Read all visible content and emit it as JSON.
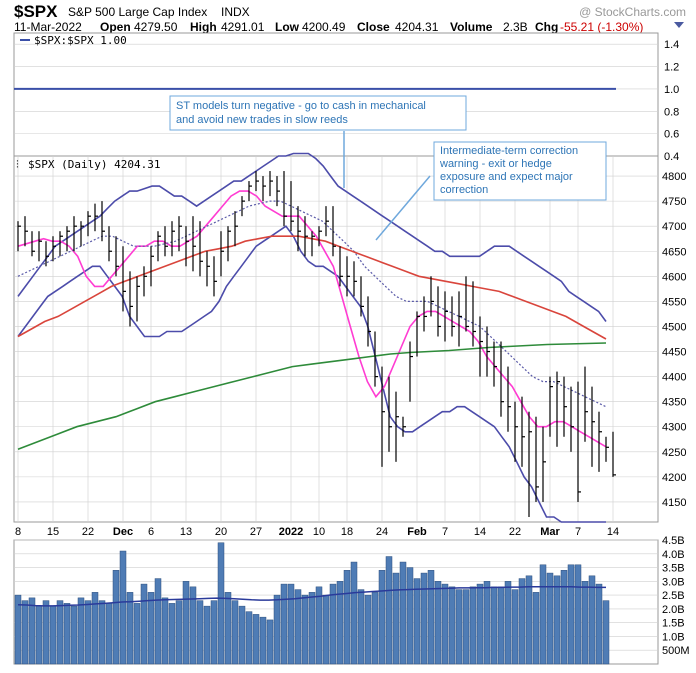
{
  "header": {
    "symbol": "$SPX",
    "name": "S&P 500 Large Cap Index",
    "exchange": "INDX",
    "watermark": "@ StockCharts.com",
    "date": "11-Mar-2022",
    "open_label": "Open",
    "open": "4279.50",
    "high_label": "High",
    "high": "4291.01",
    "low_label": "Low",
    "low": "4200.49",
    "close_label": "Close",
    "close": "4204.31",
    "volume_label": "Volume",
    "volume": "2.3B",
    "chg_label": "Chg",
    "chg": "-55.21 (-1.30%)"
  },
  "colors": {
    "ratio_line": "#3a4fa8",
    "bollinger": "#4c4caa",
    "ema_fast": "#ff3cd2",
    "ma_dotted": "#5a5aa8",
    "ma_50": "#d9453c",
    "ma_200": "#2e8b3a",
    "volume_bar": "#4f7cb5",
    "volume_avg": "#2a3a9a",
    "annotation_border": "#6fa8dc",
    "annotation_text": "#2e75b6",
    "grid": "#cfcfcf"
  },
  "chart_data": [
    {
      "type": "line",
      "panel": "ratio",
      "legend": "$SPX:$SPX 1.00",
      "ylim": [
        0.4,
        1.5
      ],
      "yticks": [
        0.4,
        0.6,
        0.8,
        1.0,
        1.2,
        1.4
      ],
      "ytick_labels": [
        "0.4",
        "0.6",
        "0.8",
        "1.0",
        "1.2",
        "1.4"
      ],
      "value": 1.0
    },
    {
      "type": "line",
      "panel": "price",
      "legend": "$SPX (Daily) 4204.31",
      "ylim": [
        4110,
        4840
      ],
      "yticks": [
        4150,
        4200,
        4250,
        4300,
        4350,
        4400,
        4450,
        4500,
        4550,
        4600,
        4650,
        4700,
        4750,
        4800
      ],
      "x_tick_labels": [
        "8",
        "15",
        "22",
        "Dec",
        "6",
        "13",
        "20",
        "27",
        "2022",
        "10",
        "18",
        "24",
        "Feb",
        "7",
        "14",
        "22",
        "Mar",
        "7",
        "14"
      ],
      "x_tick_index": [
        0,
        5,
        10,
        15,
        19,
        24,
        29,
        34,
        39,
        43,
        47,
        52,
        57,
        61,
        66,
        71,
        76,
        80,
        85
      ],
      "ohlc": {
        "high": [
          4710,
          4720,
          4690,
          4690,
          4670,
          4680,
          4690,
          4700,
          4720,
          4710,
          4730,
          4745,
          4750,
          4700,
          4680,
          4660,
          4610,
          4600,
          4620,
          4660,
          4690,
          4700,
          4710,
          4720,
          4700,
          4720,
          4710,
          4650,
          4640,
          4690,
          4700,
          4730,
          4760,
          4790,
          4810,
          4800,
          4810,
          4800,
          4810,
          4790,
          4740,
          4720,
          4690,
          4700,
          4740,
          4740,
          4660,
          4640,
          4630,
          4600,
          4560,
          4490,
          4420,
          4400,
          4370,
          4320,
          4470,
          4530,
          4560,
          4600,
          4580,
          4570,
          4560,
          4570,
          4600,
          4590,
          4520,
          4500,
          4470,
          4470,
          4420,
          4350,
          4360,
          4330,
          4320,
          4300,
          4400,
          4410,
          4400,
          4380,
          4390,
          4420,
          4380,
          4330,
          4280,
          4290
        ],
        "low": [
          4650,
          4660,
          4640,
          4630,
          4620,
          4630,
          4640,
          4650,
          4650,
          4660,
          4680,
          4690,
          4670,
          4630,
          4600,
          4530,
          4500,
          4510,
          4560,
          4580,
          4630,
          4640,
          4640,
          4650,
          4620,
          4610,
          4600,
          4580,
          4560,
          4600,
          4630,
          4660,
          4720,
          4750,
          4770,
          4750,
          4760,
          4740,
          4700,
          4690,
          4650,
          4640,
          4640,
          4660,
          4680,
          4640,
          4580,
          4560,
          4560,
          4520,
          4460,
          4380,
          4220,
          4250,
          4230,
          4280,
          4350,
          4440,
          4490,
          4520,
          4480,
          4470,
          4480,
          4460,
          4490,
          4460,
          4400,
          4400,
          4380,
          4320,
          4290,
          4230,
          4220,
          4120,
          4150,
          4150,
          4280,
          4260,
          4280,
          4250,
          4150,
          4270,
          4220,
          4210,
          4230,
          4200
        ],
        "close": [
          4700,
          4690,
          4650,
          4670,
          4640,
          4660,
          4680,
          4690,
          4700,
          4700,
          4720,
          4720,
          4690,
          4650,
          4620,
          4570,
          4540,
          4580,
          4600,
          4640,
          4680,
          4660,
          4690,
          4700,
          4670,
          4660,
          4630,
          4620,
          4590,
          4650,
          4690,
          4700,
          4750,
          4780,
          4790,
          4780,
          4790,
          4770,
          4720,
          4710,
          4690,
          4680,
          4680,
          4690,
          4710,
          4660,
          4600,
          4600,
          4590,
          4540,
          4490,
          4400,
          4330,
          4300,
          4320,
          4300,
          4440,
          4520,
          4520,
          4550,
          4500,
          4530,
          4500,
          4520,
          4500,
          4490,
          4470,
          4450,
          4420,
          4350,
          4340,
          4300,
          4280,
          4290,
          4180,
          4230,
          4380,
          4390,
          4340,
          4300,
          4170,
          4330,
          4310,
          4290,
          4259,
          4204
        ]
      },
      "series": [
        {
          "name": "upper_band",
          "values": [
            4560,
            4580,
            4600,
            4620,
            4640,
            4660,
            4670,
            4680,
            4690,
            4700,
            4710,
            4720,
            4735,
            4750,
            4760,
            4770,
            4770,
            4775,
            4780,
            4780,
            4770,
            4760,
            4760,
            4750,
            4740,
            4750,
            4760,
            4770,
            4780,
            4790,
            4790,
            4800,
            4810,
            4820,
            4830,
            4840,
            4840,
            4845,
            4845,
            4845,
            4835,
            4820,
            4800,
            4780,
            4770,
            4760,
            4750,
            4740,
            4730,
            4720,
            4710,
            4700,
            4690,
            4680,
            4670,
            4660,
            4650,
            4650,
            4640,
            4640,
            4640,
            4640,
            4640,
            4650,
            4660,
            4660,
            4660,
            4650,
            4640,
            4630,
            4620,
            4610,
            4600,
            4590,
            4570,
            4560,
            4550,
            4540,
            4530,
            4510
          ]
        },
        {
          "name": "lower_band",
          "values": [
            4480,
            4500,
            4520,
            4540,
            4560,
            4570,
            4580,
            4590,
            4600,
            4610,
            4620,
            4620,
            4600,
            4580,
            4560,
            4520,
            4500,
            4480,
            4480,
            4480,
            4490,
            4490,
            4490,
            4500,
            4510,
            4520,
            4530,
            4550,
            4580,
            4600,
            4620,
            4640,
            4660,
            4670,
            4680,
            4690,
            4700,
            4680,
            4650,
            4630,
            4620,
            4620,
            4610,
            4600,
            4580,
            4560,
            4540,
            4500,
            4440,
            4380,
            4320,
            4300,
            4290,
            4290,
            4300,
            4310,
            4320,
            4330,
            4330,
            4340,
            4340,
            4330,
            4320,
            4310,
            4300,
            4280,
            4260,
            4230,
            4200,
            4180,
            4150,
            4120,
            4120,
            4110,
            4110,
            4110,
            4110,
            4110,
            4110,
            4110
          ]
        },
        {
          "name": "ema_fast",
          "values": [
            4660,
            4665,
            4670,
            4675,
            4670,
            4670,
            4660,
            4640,
            4600,
            4580,
            4580,
            4600,
            4620,
            4640,
            4660,
            4660,
            4670,
            4670,
            4660,
            4660,
            4670,
            4680,
            4700,
            4720,
            4740,
            4760,
            4770,
            4770,
            4760,
            4740,
            4730,
            4720,
            4720,
            4720,
            4700,
            4680,
            4650,
            4620,
            4560,
            4500,
            4440,
            4390,
            4360,
            4380,
            4420,
            4460,
            4500,
            4520,
            4530,
            4530,
            4520,
            4510,
            4500,
            4490,
            4470,
            4440,
            4420,
            4400,
            4380,
            4350,
            4320,
            4300,
            4300,
            4310,
            4310,
            4300,
            4290,
            4280,
            4270,
            4260
          ]
        },
        {
          "name": "ma_dotted",
          "values": [
            4600,
            4610,
            4620,
            4630,
            4640,
            4650,
            4660,
            4670,
            4680,
            4680,
            4670,
            4660,
            4660,
            4660,
            4665,
            4670,
            4680,
            4690,
            4700,
            4710,
            4720,
            4730,
            4740,
            4745,
            4750,
            4750,
            4740,
            4730,
            4720,
            4710,
            4690,
            4670,
            4650,
            4620,
            4600,
            4580,
            4560,
            4550,
            4550,
            4550,
            4540,
            4530,
            4520,
            4510,
            4500,
            4480,
            4460,
            4440,
            4420,
            4400,
            4390,
            4390,
            4380,
            4370,
            4360,
            4350,
            4340
          ]
        },
        {
          "name": "ma_50",
          "values": [
            4480,
            4495,
            4510,
            4520,
            4535,
            4550,
            4565,
            4580,
            4590,
            4600,
            4610,
            4620,
            4630,
            4640,
            4650,
            4655,
            4660,
            4670,
            4675,
            4680,
            4680,
            4680,
            4675,
            4670,
            4660,
            4650,
            4640,
            4630,
            4620,
            4610,
            4600,
            4595,
            4590,
            4585,
            4580,
            4575,
            4570,
            4560,
            4550,
            4540,
            4530,
            4520,
            4505,
            4490,
            4475
          ]
        },
        {
          "name": "ma_200",
          "values": [
            4255,
            4270,
            4285,
            4300,
            4310,
            4320,
            4335,
            4350,
            4360,
            4370,
            4380,
            4390,
            4400,
            4410,
            4420,
            4425,
            4430,
            4435,
            4440,
            4445,
            4448,
            4450,
            4452,
            4455,
            4458,
            4460,
            4462,
            4464,
            4465,
            4466,
            4467
          ]
        }
      ]
    },
    {
      "type": "bar",
      "panel": "volume",
      "ylim": [
        0,
        4500
      ],
      "yticks": [
        500,
        1000,
        1500,
        2000,
        2500,
        3000,
        3500,
        4000,
        4500
      ],
      "ytick_labels": [
        "500M",
        "1.0B",
        "1.5B",
        "2.0B",
        "2.5B",
        "3.0B",
        "3.5B",
        "4.0B",
        "4.5B"
      ],
      "values": [
        2500,
        2300,
        2400,
        2100,
        2300,
        2100,
        2300,
        2200,
        2100,
        2400,
        2300,
        2600,
        2300,
        2200,
        3400,
        4100,
        2600,
        2200,
        2900,
        2600,
        3100,
        2400,
        2200,
        2300,
        3000,
        2800,
        2300,
        2100,
        2300,
        4400,
        2600,
        2300,
        2100,
        1900,
        1800,
        1700,
        1600,
        2500,
        2900,
        2900,
        2700,
        2500,
        2600,
        2800,
        2500,
        2900,
        3000,
        3400,
        3700,
        2700,
        2500,
        2600,
        3400,
        3900,
        3300,
        3700,
        3500,
        3100,
        3300,
        3400,
        3000,
        2900,
        2800,
        2700,
        2700,
        2800,
        2900,
        3000,
        2800,
        2800,
        3000,
        2700,
        3100,
        3200,
        2600,
        3600,
        3300,
        3200,
        3400,
        3600,
        3600,
        3000,
        3200,
        2900,
        2300
      ],
      "average": [
        2150,
        2140,
        2120,
        2110,
        2110,
        2120,
        2130,
        2140,
        2160,
        2180,
        2200,
        2220,
        2250,
        2260,
        2280,
        2300,
        2320,
        2330,
        2340,
        2350,
        2360,
        2370,
        2380,
        2390,
        2380,
        2370,
        2350,
        2330,
        2320,
        2320,
        2330,
        2350,
        2370,
        2400,
        2430,
        2460,
        2500,
        2530,
        2560,
        2590,
        2610,
        2630,
        2650,
        2670,
        2690,
        2700,
        2710,
        2720,
        2730,
        2740,
        2750,
        2760,
        2760,
        2770,
        2770,
        2780,
        2780,
        2790,
        2790,
        2800,
        2800,
        2800,
        2800,
        2800,
        2800,
        2790,
        2790,
        2780,
        2780
      ]
    }
  ],
  "annotations": [
    {
      "text": "ST models turn negative - go to cash in mechanical and avoid new trades in slow reeds",
      "line1": "ST models turn negative - go to cash in mechanical",
      "line2": "and avoid new trades in slow reeds"
    },
    {
      "text": "Intermediate-term correction warning - exit or hedge exposure and expect major correction",
      "line1": "Intermediate-term correction",
      "line2": "warning - exit or hedge",
      "line3": "exposure and expect major",
      "line4": "correction"
    }
  ]
}
